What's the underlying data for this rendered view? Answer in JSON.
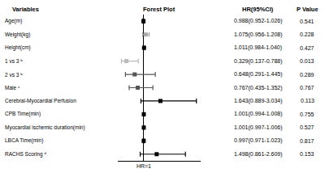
{
  "chart_data": {
    "type": "forest",
    "headers": [
      "Variables",
      "Forest Plot",
      "HR(95%CI)",
      "P Value"
    ],
    "categories": [
      "Age(m)",
      "Weight(kg)",
      "Height(cm)",
      "1 vs 3 ᵇ",
      "2 vs 3 ᵇ",
      "Male ᶜ",
      "Cerebral-Myocardial Perfusion",
      "CPB Time(min)",
      "Myocardial ischemic duration(min)",
      "LBCA Time(min)",
      "RACHS Scoring ᵈ"
    ],
    "values": [
      0.988,
      1.075,
      1.011,
      0.329,
      0.648,
      0.767,
      1.643,
      1.001,
      1.001,
      0.997,
      1.498
    ],
    "lower": [
      0.952,
      0.956,
      0.984,
      0.137,
      0.291,
      0.435,
      0.889,
      0.994,
      0.997,
      0.971,
      0.861
    ],
    "upper": [
      1.026,
      1.208,
      1.04,
      0.788,
      1.445,
      1.352,
      3.034,
      1.008,
      1.006,
      1.023,
      2.609
    ],
    "value_labels": [
      "0.988(0.952-1.026)",
      "1.075(0.956-1.208)",
      "1.011(0.984-1.040)",
      "0.329(0.137-0.788)",
      "0.648(0.291-1.445)",
      "0.767(0.435-1.352)",
      "1.643(0.889-3.034)",
      "1.001(0.994-1.008)",
      "1.001(0.997-1.006)",
      "0.997(0.971-1.023)",
      "1.498(0.861-2.609)"
    ],
    "p_values": [
      0.541,
      0.228,
      0.427,
      0.013,
      0.289,
      0.767,
      0.113,
      0.755,
      0.527,
      0.817,
      0.153
    ],
    "colors": [
      "#000000",
      "#aaaaaa",
      "#000000",
      "#bbbbbb",
      "#555555",
      "#555555",
      "#000000",
      "#000000",
      "#000000",
      "#000000",
      "#000000"
    ],
    "marker": "square",
    "xlim": [
      0,
      3.2
    ],
    "xticks": [
      {
        "value": 1,
        "label": "HR=1"
      }
    ],
    "grid": true,
    "tick_labels": "x"
  }
}
